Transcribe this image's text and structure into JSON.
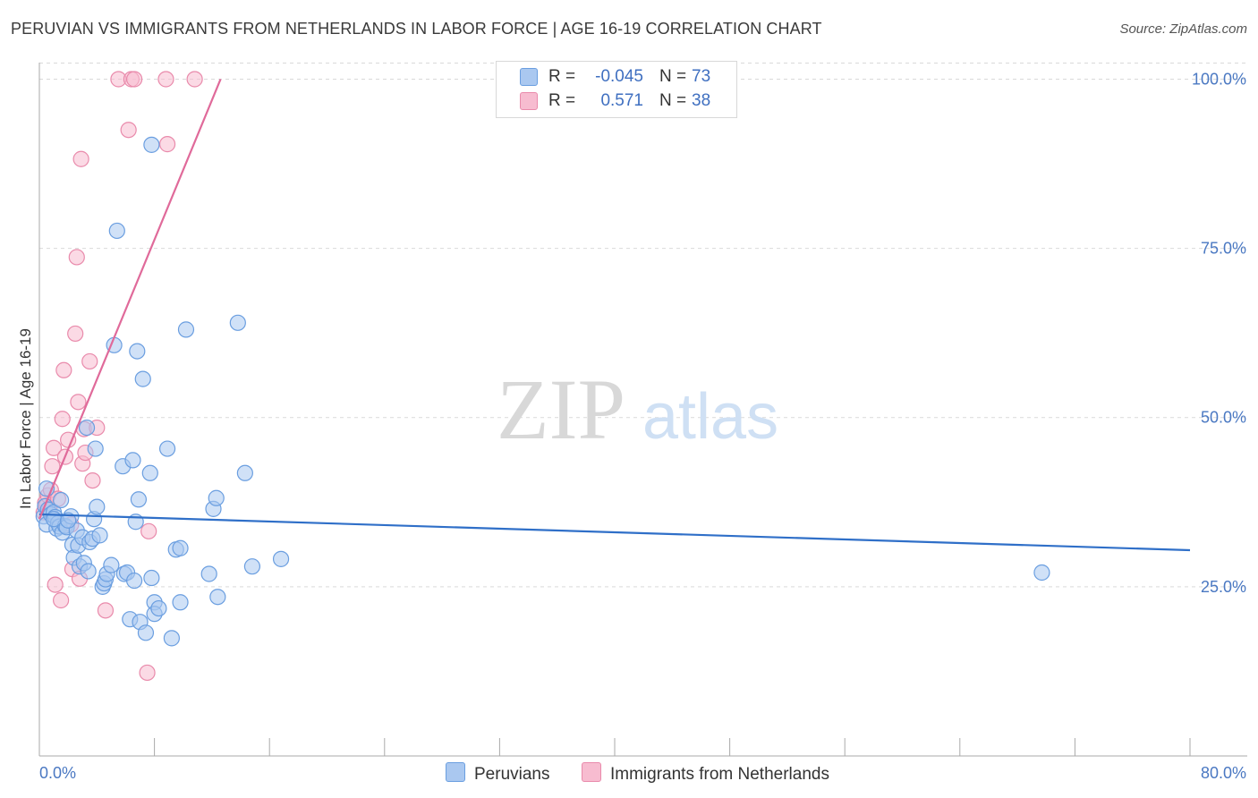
{
  "title": "PERUVIAN VS IMMIGRANTS FROM NETHERLANDS IN LABOR FORCE | AGE 16-19 CORRELATION CHART",
  "source": "Source: ZipAtlas.com",
  "watermark": {
    "zip": "ZIP",
    "atlas": "atlas"
  },
  "legend": {
    "rows": [
      {
        "r_label": "R =",
        "r_value": "-0.045",
        "n_label": "N =",
        "n_value": "73"
      },
      {
        "r_label": "R =",
        "r_value": "0.571",
        "n_label": "N =",
        "n_value": "38"
      }
    ]
  },
  "bottom_legend": [
    "Peruvians",
    "Immigrants from Netherlands"
  ],
  "colors": {
    "blue_fill": "#aac8f0",
    "blue_stroke": "#6a9ee0",
    "blue_line": "#2f6fc8",
    "pink_fill": "#f7bcd0",
    "pink_stroke": "#e98aab",
    "pink_line": "#e06a9a",
    "grid": "#d9d9d9",
    "axis": "#aaaaaa",
    "tick_text": "#4a78c2"
  },
  "chart_data": {
    "type": "scatter",
    "title": "PERUVIAN VS IMMIGRANTS FROM NETHERLANDS IN LABOR FORCE | AGE 16-19 CORRELATION CHART",
    "xlabel": "",
    "ylabel": "In Labor Force | Age 16-19",
    "xlim": [
      0,
      80
    ],
    "ylim": [
      0,
      103.5
    ],
    "x_tick_labels": [
      "0.0%",
      "80.0%"
    ],
    "y_ticks": [
      25,
      50,
      75,
      100
    ],
    "y_tick_labels": [
      "25.0%",
      "50.0%",
      "75.0%",
      "100.0%"
    ],
    "grid": true,
    "legend_position": "top-center",
    "series": [
      {
        "name": "Peruvians",
        "color": "#aac8f0",
        "R": -0.045,
        "N": 73,
        "trend": {
          "x": [
            0,
            80
          ],
          "y": [
            35.7,
            30.4
          ]
        },
        "points": [
          [
            0.3,
            35.4
          ],
          [
            0.4,
            36.9
          ],
          [
            0.5,
            34.2
          ],
          [
            0.6,
            36.4
          ],
          [
            0.8,
            35.7
          ],
          [
            1.0,
            36.0
          ],
          [
            1.1,
            35.3
          ],
          [
            1.2,
            33.6
          ],
          [
            1.3,
            34.4
          ],
          [
            1.4,
            33.9
          ],
          [
            1.5,
            37.8
          ],
          [
            1.6,
            33.0
          ],
          [
            1.8,
            34.0
          ],
          [
            1.9,
            33.8
          ],
          [
            2.2,
            35.4
          ],
          [
            2.3,
            31.2
          ],
          [
            2.4,
            29.3
          ],
          [
            2.6,
            33.3
          ],
          [
            2.7,
            31.1
          ],
          [
            2.8,
            28.0
          ],
          [
            3.0,
            32.3
          ],
          [
            3.1,
            28.5
          ],
          [
            3.3,
            48.5
          ],
          [
            3.4,
            27.3
          ],
          [
            3.5,
            31.6
          ],
          [
            3.7,
            32.1
          ],
          [
            3.8,
            35.0
          ],
          [
            3.9,
            45.4
          ],
          [
            4.0,
            36.8
          ],
          [
            4.2,
            32.6
          ],
          [
            4.4,
            25.0
          ],
          [
            4.5,
            25.5
          ],
          [
            4.6,
            26.1
          ],
          [
            4.7,
            26.9
          ],
          [
            5.0,
            28.2
          ],
          [
            5.2,
            60.7
          ],
          [
            5.4,
            77.6
          ],
          [
            5.8,
            42.8
          ],
          [
            5.9,
            26.9
          ],
          [
            6.1,
            27.1
          ],
          [
            6.3,
            20.2
          ],
          [
            6.5,
            43.7
          ],
          [
            6.6,
            25.9
          ],
          [
            6.7,
            34.6
          ],
          [
            6.8,
            59.8
          ],
          [
            6.9,
            37.9
          ],
          [
            7.0,
            19.8
          ],
          [
            7.2,
            55.7
          ],
          [
            7.4,
            18.2
          ],
          [
            7.7,
            41.8
          ],
          [
            7.8,
            26.3
          ],
          [
            8.0,
            22.7
          ],
          [
            8.0,
            21.0
          ],
          [
            8.3,
            21.8
          ],
          [
            7.8,
            90.3
          ],
          [
            8.9,
            45.4
          ],
          [
            9.2,
            17.4
          ],
          [
            9.5,
            30.5
          ],
          [
            9.8,
            30.7
          ],
          [
            9.8,
            22.7
          ],
          [
            10.2,
            63.0
          ],
          [
            11.8,
            26.9
          ],
          [
            12.1,
            36.5
          ],
          [
            12.3,
            38.1
          ],
          [
            12.4,
            23.5
          ],
          [
            13.8,
            64.0
          ],
          [
            14.3,
            41.8
          ],
          [
            14.8,
            28.0
          ],
          [
            16.8,
            29.1
          ],
          [
            69.7,
            27.1
          ],
          [
            0.5,
            39.5
          ],
          [
            1.0,
            35.0
          ],
          [
            2.0,
            34.8
          ]
        ]
      },
      {
        "name": "Immigrants from Netherlands",
        "color": "#f7bcd0",
        "R": 0.571,
        "N": 38,
        "trend": {
          "x": [
            0,
            12.6
          ],
          "y": [
            35.0,
            100
          ]
        },
        "points": [
          [
            0.3,
            36.0
          ],
          [
            0.4,
            37.4
          ],
          [
            0.5,
            37.0
          ],
          [
            0.6,
            38.5
          ],
          [
            0.7,
            36.5
          ],
          [
            0.8,
            39.3
          ],
          [
            0.9,
            42.8
          ],
          [
            1.0,
            45.5
          ],
          [
            1.1,
            25.3
          ],
          [
            1.3,
            38.0
          ],
          [
            1.5,
            23.0
          ],
          [
            1.6,
            49.8
          ],
          [
            1.7,
            57.0
          ],
          [
            1.8,
            44.2
          ],
          [
            2.0,
            46.7
          ],
          [
            2.2,
            34.2
          ],
          [
            2.3,
            27.6
          ],
          [
            2.5,
            62.4
          ],
          [
            2.6,
            73.7
          ],
          [
            2.7,
            52.3
          ],
          [
            2.8,
            26.2
          ],
          [
            2.9,
            88.2
          ],
          [
            3.0,
            43.2
          ],
          [
            3.1,
            48.3
          ],
          [
            3.2,
            44.8
          ],
          [
            3.5,
            58.3
          ],
          [
            3.7,
            40.7
          ],
          [
            4.0,
            48.5
          ],
          [
            4.6,
            21.5
          ],
          [
            5.5,
            100.0
          ],
          [
            6.2,
            92.5
          ],
          [
            6.4,
            100.0
          ],
          [
            6.6,
            100.0
          ],
          [
            7.5,
            12.3
          ],
          [
            7.6,
            33.2
          ],
          [
            8.8,
            100.0
          ],
          [
            8.9,
            90.4
          ],
          [
            10.8,
            100.0
          ]
        ]
      }
    ]
  }
}
